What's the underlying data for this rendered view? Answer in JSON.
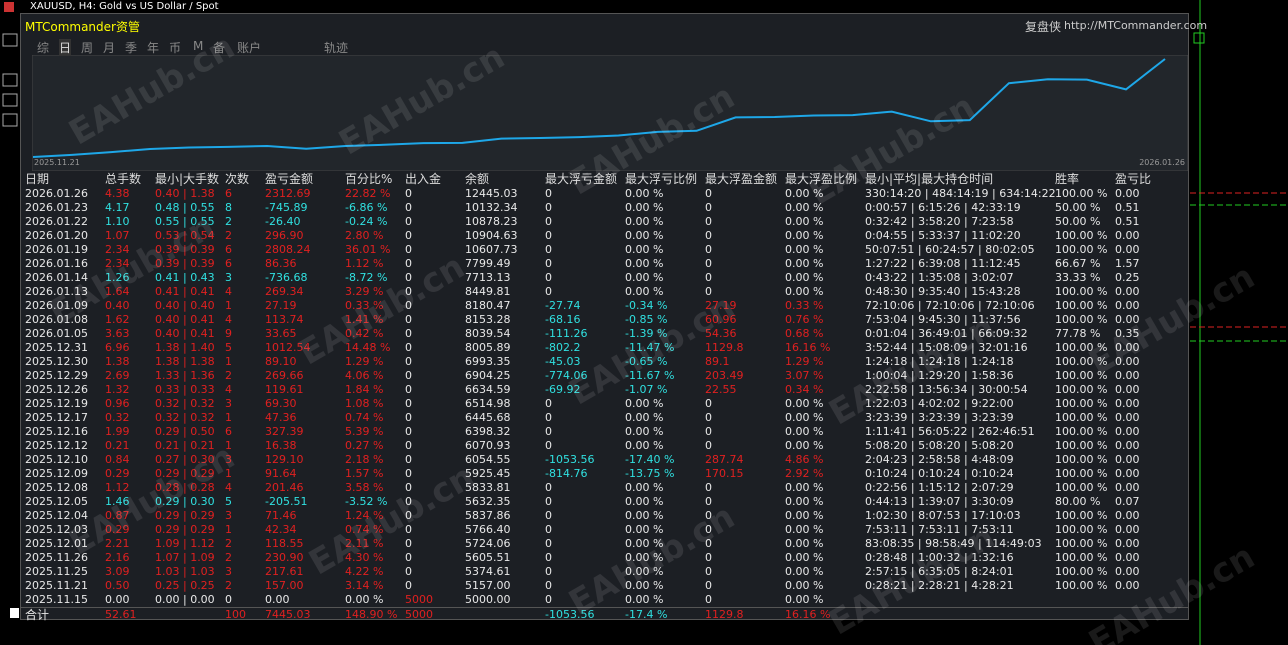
{
  "window": {
    "caption": "XAUUSD, H4:  Gold vs US Dollar / Spot"
  },
  "header": {
    "title": "MTCommander资管",
    "brand": "复盘侠",
    "url": "http://MTCommander.com"
  },
  "tabs": [
    "综",
    "日",
    "周",
    "月",
    "季",
    "年",
    "币",
    "M",
    "备",
    "账户",
    "轨迹"
  ],
  "equity_chart": {
    "start_label": "2025.11.21",
    "end_label": "2026.01.26"
  },
  "watermark": "EAHub.cn",
  "table": {
    "columns": [
      "日期",
      "总手数",
      "最小|大手数",
      "次数",
      "盈亏金额",
      "百分比%",
      "出入金",
      "余额",
      "最大浮亏金额",
      "最大浮亏比例",
      "最大浮盈金额",
      "最大浮盈比例",
      "最小|平均|最大持仓时间",
      "胜率",
      "盈亏比"
    ],
    "rows": [
      [
        "2026.01.26",
        "4.38",
        "0.40 | 1.38",
        "6",
        "2312.69",
        "22.82 %",
        "0",
        "12445.03",
        "0",
        "0.00 %",
        "0",
        "0.00 %",
        "330:14:20 | 484:14:19 | 634:14:22",
        "100.00 %",
        "0.00"
      ],
      [
        "2026.01.23",
        "4.17",
        "0.48 | 0.55",
        "8",
        "-745.89",
        "-6.86 %",
        "0",
        "10132.34",
        "0",
        "0.00 %",
        "0",
        "0.00 %",
        "0:00:57 | 6:15:26 | 42:33:19",
        "50.00 %",
        "0.51"
      ],
      [
        "2026.01.22",
        "1.10",
        "0.55 | 0.55",
        "2",
        "-26.40",
        "-0.24 %",
        "0",
        "10878.23",
        "0",
        "0.00 %",
        "0",
        "0.00 %",
        "0:32:42 | 3:58:20 | 7:23:58",
        "50.00 %",
        "0.51"
      ],
      [
        "2026.01.20",
        "1.07",
        "0.53 | 0.54",
        "2",
        "296.90",
        "2.80 %",
        "0",
        "10904.63",
        "0",
        "0.00 %",
        "0",
        "0.00 %",
        "0:04:55 | 5:33:37 | 11:02:20",
        "100.00 %",
        "0.00"
      ],
      [
        "2026.01.19",
        "2.34",
        "0.39 | 0.39",
        "6",
        "2808.24",
        "36.01 %",
        "0",
        "10607.73",
        "0",
        "0.00 %",
        "0",
        "0.00 %",
        "50:07:51 | 60:24:57 | 80:02:05",
        "100.00 %",
        "0.00"
      ],
      [
        "2026.01.16",
        "2.34",
        "0.39 | 0.39",
        "6",
        "86.36",
        "1.12 %",
        "0",
        "7799.49",
        "0",
        "0.00 %",
        "0",
        "0.00 %",
        "1:27:22 | 6:39:08 | 11:12:45",
        "66.67 %",
        "1.57"
      ],
      [
        "2026.01.14",
        "1.26",
        "0.41 | 0.43",
        "3",
        "-736.68",
        "-8.72 %",
        "0",
        "7713.13",
        "0",
        "0.00 %",
        "0",
        "0.00 %",
        "0:43:22 | 1:35:08 | 3:02:07",
        "33.33 %",
        "0.25"
      ],
      [
        "2026.01.13",
        "1.64",
        "0.41 | 0.41",
        "4",
        "269.34",
        "3.29 %",
        "0",
        "8449.81",
        "0",
        "0.00 %",
        "0",
        "0.00 %",
        "0:48:30 | 9:35:40 | 15:43:28",
        "100.00 %",
        "0.00"
      ],
      [
        "2026.01.09",
        "0.40",
        "0.40 | 0.40",
        "1",
        "27.19",
        "0.33 %",
        "0",
        "8180.47",
        "-27.74",
        "-0.34 %",
        "27.19",
        "0.33 %",
        "72:10:06 | 72:10:06 | 72:10:06",
        "100.00 %",
        "0.00"
      ],
      [
        "2026.01.08",
        "1.62",
        "0.40 | 0.41",
        "4",
        "113.74",
        "1.41 %",
        "0",
        "8153.28",
        "-68.16",
        "-0.85 %",
        "60.96",
        "0.76 %",
        "7:53:04 | 9:45:30 | 11:37:56",
        "100.00 %",
        "0.00"
      ],
      [
        "2026.01.05",
        "3.63",
        "0.40 | 0.41",
        "9",
        "33.65",
        "0.42 %",
        "0",
        "8039.54",
        "-111.26",
        "-1.39 %",
        "54.36",
        "0.68 %",
        "0:01:04 | 36:49:01 | 66:09:32",
        "77.78 %",
        "0.35"
      ],
      [
        "2025.12.31",
        "6.96",
        "1.38 | 1.40",
        "5",
        "1012.54",
        "14.48 %",
        "0",
        "8005.89",
        "-802.2",
        "-11.47 %",
        "1129.8",
        "16.16 %",
        "3:52:44 | 15:08:09 | 32:01:16",
        "100.00 %",
        "0.00"
      ],
      [
        "2025.12.30",
        "1.38",
        "1.38 | 1.38",
        "1",
        "89.10",
        "1.29 %",
        "0",
        "6993.35",
        "-45.03",
        "-0.65 %",
        "89.1",
        "1.29 %",
        "1:24:18 | 1:24:18 | 1:24:18",
        "100.00 %",
        "0.00"
      ],
      [
        "2025.12.29",
        "2.69",
        "1.33 | 1.36",
        "2",
        "269.66",
        "4.06 %",
        "0",
        "6904.25",
        "-774.06",
        "-11.67 %",
        "203.49",
        "3.07 %",
        "1:00:04 | 1:29:20 | 1:58:36",
        "100.00 %",
        "0.00"
      ],
      [
        "2025.12.26",
        "1.32",
        "0.33 | 0.33",
        "4",
        "119.61",
        "1.84 %",
        "0",
        "6634.59",
        "-69.92",
        "-1.07 %",
        "22.55",
        "0.34 %",
        "2:22:58 | 13:56:34 | 30:00:54",
        "100.00 %",
        "0.00"
      ],
      [
        "2025.12.19",
        "0.96",
        "0.32 | 0.32",
        "3",
        "69.30",
        "1.08 %",
        "0",
        "6514.98",
        "0",
        "0.00 %",
        "0",
        "0.00 %",
        "1:22:03 | 4:02:02 | 9:22:00",
        "100.00 %",
        "0.00"
      ],
      [
        "2025.12.17",
        "0.32",
        "0.32 | 0.32",
        "1",
        "47.36",
        "0.74 %",
        "0",
        "6445.68",
        "0",
        "0.00 %",
        "0",
        "0.00 %",
        "3:23:39 | 3:23:39 | 3:23:39",
        "100.00 %",
        "0.00"
      ],
      [
        "2025.12.16",
        "1.99",
        "0.29 | 0.50",
        "6",
        "327.39",
        "5.39 %",
        "0",
        "6398.32",
        "0",
        "0.00 %",
        "0",
        "0.00 %",
        "1:11:41 | 56:05:22 | 262:46:51",
        "100.00 %",
        "0.00"
      ],
      [
        "2025.12.12",
        "0.21",
        "0.21 | 0.21",
        "1",
        "16.38",
        "0.27 %",
        "0",
        "6070.93",
        "0",
        "0.00 %",
        "0",
        "0.00 %",
        "5:08:20 | 5:08:20 | 5:08:20",
        "100.00 %",
        "0.00"
      ],
      [
        "2025.12.10",
        "0.84",
        "0.27 | 0.30",
        "3",
        "129.10",
        "2.18 %",
        "0",
        "6054.55",
        "-1053.56",
        "-17.40 %",
        "287.74",
        "4.86 %",
        "2:04:23 | 2:58:58 | 4:48:09",
        "100.00 %",
        "0.00"
      ],
      [
        "2025.12.09",
        "0.29",
        "0.29 | 0.29",
        "1",
        "91.64",
        "1.57 %",
        "0",
        "5925.45",
        "-814.76",
        "-13.75 %",
        "170.15",
        "2.92 %",
        "0:10:24 | 0:10:24 | 0:10:24",
        "100.00 %",
        "0.00"
      ],
      [
        "2025.12.08",
        "1.12",
        "0.28 | 0.28",
        "4",
        "201.46",
        "3.58 %",
        "0",
        "5833.81",
        "0",
        "0.00 %",
        "0",
        "0.00 %",
        "0:22:56 | 1:15:12 | 2:07:29",
        "100.00 %",
        "0.00"
      ],
      [
        "2025.12.05",
        "1.46",
        "0.29 | 0.30",
        "5",
        "-205.51",
        "-3.52 %",
        "0",
        "5632.35",
        "0",
        "0.00 %",
        "0",
        "0.00 %",
        "0:44:13 | 1:39:07 | 3:30:09",
        "80.00 %",
        "0.07"
      ],
      [
        "2025.12.04",
        "0.87",
        "0.29 | 0.29",
        "3",
        "71.46",
        "1.24 %",
        "0",
        "5837.86",
        "0",
        "0.00 %",
        "0",
        "0.00 %",
        "1:02:30 | 8:07:53 | 17:10:03",
        "100.00 %",
        "0.00"
      ],
      [
        "2025.12.03",
        "0.29",
        "0.29 | 0.29",
        "1",
        "42.34",
        "0.74 %",
        "0",
        "5766.40",
        "0",
        "0.00 %",
        "0",
        "0.00 %",
        "7:53:11 | 7:53:11 | 7:53:11",
        "100.00 %",
        "0.00"
      ],
      [
        "2025.12.01",
        "2.21",
        "1.09 | 1.12",
        "2",
        "118.55",
        "2.11 %",
        "0",
        "5724.06",
        "0",
        "0.00 %",
        "0",
        "0.00 %",
        "83:08:35 | 98:58:49 | 114:49:03",
        "100.00 %",
        "0.00"
      ],
      [
        "2025.11.26",
        "2.16",
        "1.07 | 1.09",
        "2",
        "230.90",
        "4.30 %",
        "0",
        "5605.51",
        "0",
        "0.00 %",
        "0",
        "0.00 %",
        "0:28:48 | 1:00:32 | 1:32:16",
        "100.00 %",
        "0.00"
      ],
      [
        "2025.11.25",
        "3.09",
        "1.03 | 1.03",
        "3",
        "217.61",
        "4.22 %",
        "0",
        "5374.61",
        "0",
        "0.00 %",
        "0",
        "0.00 %",
        "2:57:15 | 6:35:05 | 8:24:01",
        "100.00 %",
        "0.00"
      ],
      [
        "2025.11.21",
        "0.50",
        "0.25 | 0.25",
        "2",
        "157.00",
        "3.14 %",
        "0",
        "5157.00",
        "0",
        "0.00 %",
        "0",
        "0.00 %",
        "0:28:21 | 2:28:21 | 4:28:21",
        "100.00 %",
        "0.00"
      ],
      [
        "2025.11.15",
        "0.00",
        "0.00 | 0.00",
        "0",
        "0.00",
        "0.00 %",
        "5000",
        "5000.00",
        "0",
        "0.00 %",
        "0",
        "0.00 %"
      ]
    ],
    "summary": {
      "label": "合计",
      "total_lots": "52.61",
      "count": "100",
      "pnl": "7445.03",
      "pct": "148.90 %",
      "flow": "5000",
      "max_float_loss": "-1053.56",
      "max_float_loss_pct": "-17.4 %",
      "max_float_profit": "1129.8",
      "max_float_profit_pct": "16.16 %"
    }
  }
}
